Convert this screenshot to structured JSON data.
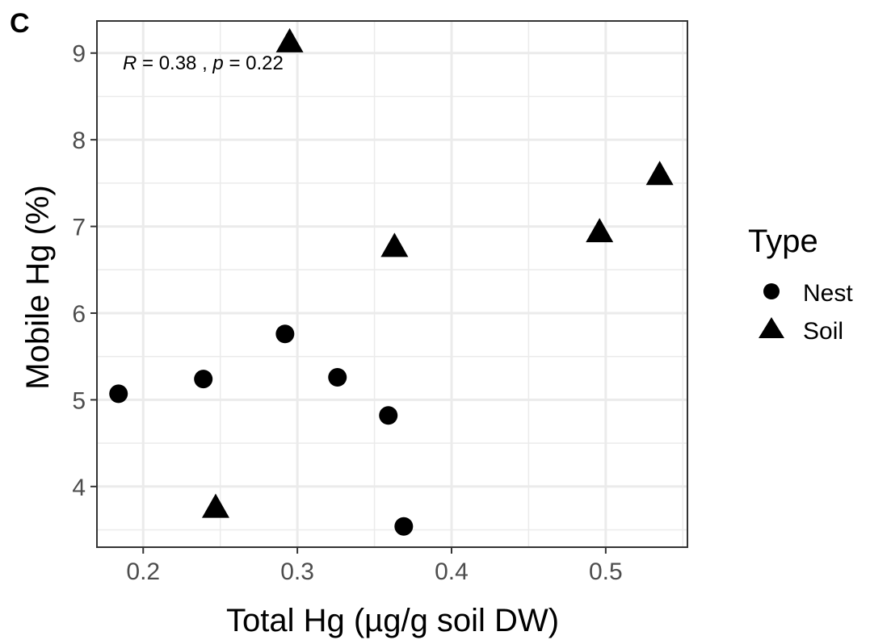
{
  "panel_label": "C",
  "chart_data": {
    "type": "scatter",
    "xlabel": "Total Hg (µg/g soil DW)",
    "ylabel": "Mobile Hg (%)",
    "xlim": [
      0.17,
      0.553
    ],
    "ylim": [
      3.3,
      9.37
    ],
    "x_ticks": [
      0.2,
      0.3,
      0.4,
      0.5
    ],
    "x_tick_labels": [
      "0.2",
      "0.3",
      "0.4",
      "0.5"
    ],
    "y_ticks": [
      4,
      5,
      6,
      7,
      8,
      9
    ],
    "y_tick_labels": [
      "4",
      "5",
      "6",
      "7",
      "8",
      "9"
    ],
    "grid": true,
    "legend": {
      "title": "Type",
      "position": "right",
      "entries": [
        {
          "label": "Nest",
          "shape": "circle"
        },
        {
          "label": "Soil",
          "shape": "triangle"
        }
      ]
    },
    "annotation": {
      "r_symbol": "R",
      "r_text": " = 0.38 , ",
      "p_symbol": "p",
      "p_text": " = 0.22"
    },
    "series": [
      {
        "name": "Nest",
        "shape": "circle",
        "color": "#000000",
        "points": [
          {
            "x": 0.184,
            "y": 5.07
          },
          {
            "x": 0.239,
            "y": 5.24
          },
          {
            "x": 0.292,
            "y": 5.76
          },
          {
            "x": 0.326,
            "y": 5.26
          },
          {
            "x": 0.359,
            "y": 4.82
          },
          {
            "x": 0.369,
            "y": 3.54
          }
        ]
      },
      {
        "name": "Soil",
        "shape": "triangle",
        "color": "#000000",
        "points": [
          {
            "x": 0.247,
            "y": 3.75
          },
          {
            "x": 0.295,
            "y": 9.12
          },
          {
            "x": 0.363,
            "y": 6.76
          },
          {
            "x": 0.496,
            "y": 6.93
          },
          {
            "x": 0.535,
            "y": 7.59
          }
        ]
      }
    ]
  }
}
